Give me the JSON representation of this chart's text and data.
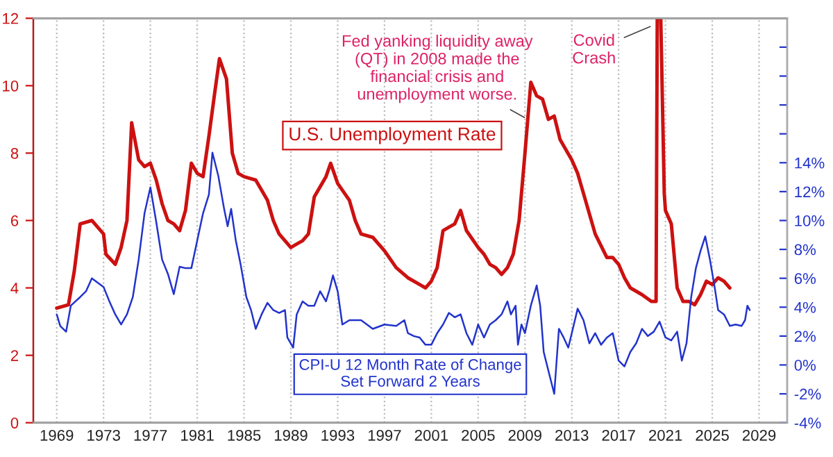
{
  "chart_data": {
    "type": "line",
    "xlim": [
      1967,
      2031.4
    ],
    "xticks": [
      1969,
      1973,
      1977,
      1981,
      1985,
      1989,
      1993,
      1997,
      2001,
      2005,
      2009,
      2013,
      2017,
      2021,
      2025,
      2029
    ],
    "ylim": [
      0,
      12
    ],
    "yticks": [
      0,
      2,
      4,
      6,
      8,
      10,
      12
    ],
    "y2lim": [
      -4,
      24
    ],
    "y2ticks": [
      {
        "value": -4,
        "label": "-4%"
      },
      {
        "value": -2,
        "label": "-2%"
      },
      {
        "value": 0,
        "label": "0%"
      },
      {
        "value": 2,
        "label": "2%"
      },
      {
        "value": 4,
        "label": "4%"
      },
      {
        "value": 6,
        "label": "6%"
      },
      {
        "value": 8,
        "label": "8%"
      },
      {
        "value": 10,
        "label": "10%"
      },
      {
        "value": 12,
        "label": "12%"
      },
      {
        "value": 14,
        "label": "14%"
      },
      {
        "value": 16,
        "label": null
      },
      {
        "value": 18,
        "label": null
      },
      {
        "value": 20,
        "label": null
      },
      {
        "value": 22,
        "label": null
      }
    ],
    "grid": "x",
    "legend": false,
    "series": [
      {
        "name": "U.S. Unemployment Rate",
        "color": "#cc1111",
        "axis": "y",
        "x": [
          1969.0,
          1970.0,
          1970.5,
          1971.0,
          1972.0,
          1973.0,
          1973.2,
          1974.0,
          1974.5,
          1975.0,
          1975.4,
          1976.0,
          1976.5,
          1977.0,
          1977.5,
          1978.0,
          1978.5,
          1979.0,
          1979.5,
          1980.0,
          1980.5,
          1981.0,
          1981.5,
          1982.0,
          1982.5,
          1982.9,
          1983.5,
          1984.0,
          1984.5,
          1985.0,
          1986.0,
          1986.5,
          1987.0,
          1987.5,
          1988.0,
          1989.0,
          1989.5,
          1990.0,
          1990.5,
          1991.0,
          1992.0,
          1992.4,
          1993.0,
          1994.0,
          1994.5,
          1995.0,
          1996.0,
          1997.0,
          1998.0,
          1999.0,
          2000.0,
          2000.5,
          2001.0,
          2001.5,
          2002.0,
          2002.5,
          2003.0,
          2003.5,
          2004.0,
          2005.0,
          2005.5,
          2006.0,
          2006.5,
          2007.0,
          2007.5,
          2008.0,
          2008.5,
          2009.0,
          2009.5,
          2010.0,
          2010.5,
          2011.0,
          2011.5,
          2012.0,
          2013.0,
          2013.5,
          2014.0,
          2015.0,
          2016.0,
          2016.5,
          2017.0,
          2017.5,
          2018.0,
          2019.0,
          2019.8,
          2020.2,
          2020.3,
          2020.6,
          2020.9,
          2021.0,
          2021.5,
          2022.0,
          2022.5,
          2023.0,
          2023.5,
          2024.0,
          2024.5,
          2025.0,
          2025.5,
          2026.0,
          2026.5
        ],
        "values": [
          3.4,
          3.5,
          4.5,
          5.9,
          6.0,
          5.6,
          5.0,
          4.7,
          5.2,
          6.0,
          8.9,
          7.8,
          7.6,
          7.7,
          7.2,
          6.5,
          6.0,
          5.9,
          5.7,
          6.3,
          7.7,
          7.4,
          7.3,
          8.5,
          9.8,
          10.8,
          10.2,
          8.0,
          7.4,
          7.3,
          7.2,
          6.9,
          6.6,
          6.0,
          5.6,
          5.2,
          5.3,
          5.4,
          5.6,
          6.7,
          7.3,
          7.7,
          7.1,
          6.6,
          6.0,
          5.6,
          5.5,
          5.1,
          4.6,
          4.3,
          4.1,
          4.0,
          4.2,
          4.6,
          5.7,
          5.8,
          5.9,
          6.3,
          5.7,
          5.2,
          5.0,
          4.7,
          4.6,
          4.4,
          4.6,
          5.0,
          6.0,
          8.0,
          10.1,
          9.7,
          9.6,
          9.0,
          9.1,
          8.4,
          7.8,
          7.4,
          6.8,
          5.6,
          4.9,
          4.9,
          4.7,
          4.3,
          4.0,
          3.8,
          3.6,
          3.6,
          12,
          12,
          6.8,
          6.3,
          5.9,
          4.0,
          3.6,
          3.6,
          3.5,
          3.8,
          4.2,
          4.1,
          4.3,
          4.2,
          4.0
        ]
      },
      {
        "name": "CPI-U 12 Month Rate of Change\nSet Forward 2 Years",
        "color": "#2233cc",
        "axis": "y2",
        "x": [
          1969.0,
          1969.3,
          1969.8,
          1970.2,
          1971.0,
          1971.5,
          1972.0,
          1972.5,
          1973.0,
          1973.5,
          1974.0,
          1974.5,
          1975.0,
          1975.5,
          1976.0,
          1976.5,
          1977.0,
          1977.5,
          1978.0,
          1978.5,
          1979.0,
          1979.5,
          1980.0,
          1980.5,
          1981.0,
          1981.5,
          1982.0,
          1982.3,
          1982.8,
          1983.3,
          1983.6,
          1983.9,
          1984.3,
          1984.7,
          1985.2,
          1985.6,
          1986.0,
          1986.5,
          1987.0,
          1987.5,
          1988.0,
          1988.5,
          1988.7,
          1989.2,
          1989.5,
          1990.0,
          1990.5,
          1991.0,
          1991.5,
          1992.0,
          1992.3,
          1992.6,
          1993.0,
          1993.4,
          1994.0,
          1995.0,
          1996.0,
          1997.0,
          1998.0,
          1998.7,
          1999.0,
          1999.5,
          2000.0,
          2000.5,
          2001.0,
          2001.5,
          2002.0,
          2002.5,
          2003.0,
          2003.5,
          2004.0,
          2004.5,
          2005.0,
          2005.5,
          2006.0,
          2006.5,
          2007.0,
          2007.5,
          2007.8,
          2008.2,
          2008.4,
          2008.7,
          2009.0,
          2009.5,
          2010.0,
          2010.3,
          2010.6,
          2011.0,
          2011.5,
          2011.9,
          2012.3,
          2012.7,
          2013.0,
          2013.5,
          2014.0,
          2014.5,
          2015.0,
          2015.5,
          2016.0,
          2016.5,
          2017.0,
          2017.5,
          2018.0,
          2018.5,
          2019.0,
          2019.5,
          2020.0,
          2020.5,
          2021.0,
          2021.5,
          2022.0,
          2022.4,
          2022.8,
          2023.2,
          2023.6,
          2024.0,
          2024.4,
          2024.8,
          2025.2,
          2025.5,
          2026.0,
          2026.5,
          2027.0,
          2027.5,
          2027.8,
          2028.0,
          2028.2
        ],
        "values": [
          3.5,
          2.7,
          2.3,
          4.1,
          4.7,
          5.1,
          6.0,
          5.7,
          5.4,
          4.4,
          3.5,
          2.8,
          3.5,
          4.7,
          7.3,
          10.5,
          12.3,
          9.9,
          7.3,
          6.3,
          4.9,
          6.8,
          6.7,
          6.7,
          8.6,
          10.5,
          11.8,
          14.7,
          13.1,
          10.8,
          9.6,
          10.8,
          8.6,
          7.0,
          4.7,
          3.8,
          2.5,
          3.5,
          4.3,
          3.8,
          3.6,
          3.8,
          1.9,
          1.2,
          3.5,
          4.4,
          4.1,
          4.1,
          5.1,
          4.4,
          5.2,
          6.2,
          5.1,
          2.8,
          3.1,
          3.1,
          2.5,
          2.8,
          2.7,
          3.1,
          2.2,
          2.0,
          1.9,
          1.4,
          1.4,
          2.2,
          2.8,
          3.6,
          3.3,
          3.5,
          2.2,
          1.4,
          2.8,
          1.9,
          2.8,
          3.1,
          3.5,
          4.4,
          3.5,
          4.1,
          1.4,
          2.8,
          2.2,
          4.1,
          5.5,
          4.1,
          0.9,
          -0.4,
          -2.0,
          2.5,
          1.9,
          1.2,
          2.2,
          3.9,
          3.1,
          1.5,
          2.2,
          1.4,
          1.9,
          2.2,
          0.3,
          -0.1,
          0.9,
          1.5,
          2.5,
          2.0,
          2.3,
          3.0,
          1.9,
          1.7,
          2.3,
          0.3,
          1.5,
          4.7,
          6.7,
          7.9,
          8.9,
          7.3,
          5.4,
          3.8,
          3.5,
          2.7,
          2.8,
          2.7,
          3.1,
          4.1,
          3.8
        ]
      }
    ],
    "annotations": [
      {
        "text": "Fed yanking liquidity away\n(QT) in 2008 made the\nfinancial crisis and\nunemployment worse.",
        "x": 2009.25,
        "y": 9.0
      },
      {
        "text": "Covid\nCrash",
        "x": 2020.0,
        "y": 11.8
      }
    ]
  }
}
